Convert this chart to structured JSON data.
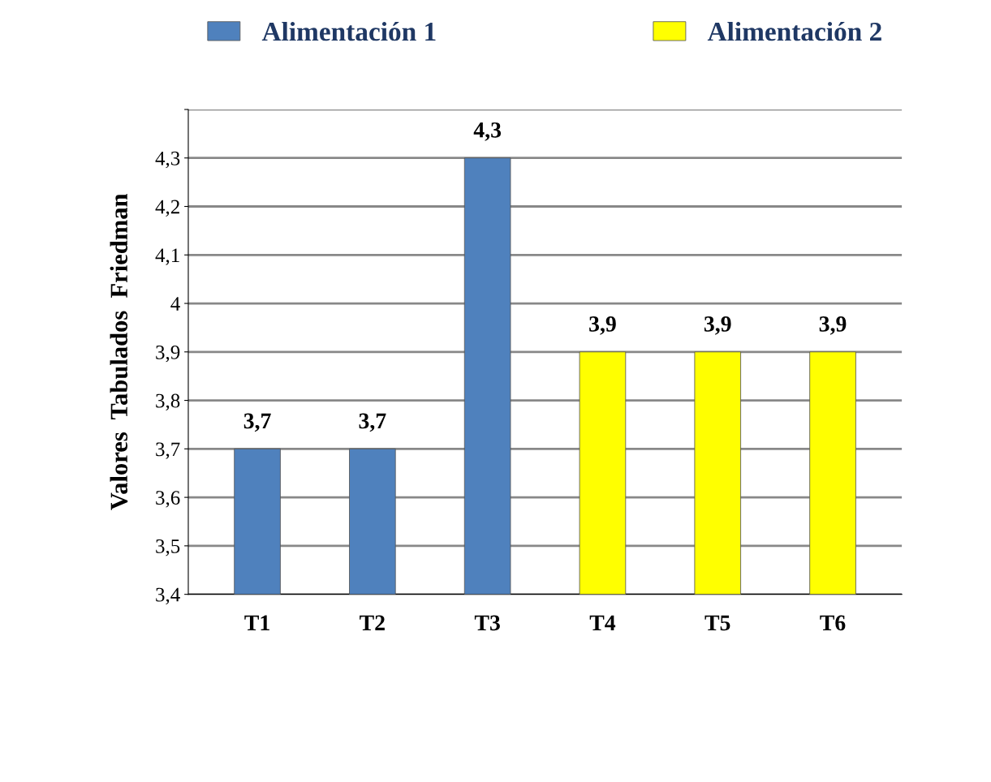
{
  "chart_data": {
    "type": "bar",
    "ylabel": "Valores  Tabulados  Friedman",
    "categories": [
      "T1",
      "T2",
      "T3",
      "T4",
      "T5",
      "T6"
    ],
    "series": [
      {
        "name": "Alimentación 1",
        "color": "#4f81bd",
        "values": [
          3.7,
          3.7,
          4.3,
          null,
          null,
          null
        ],
        "value_labels": [
          "3,7",
          "3,7",
          "4,3",
          null,
          null,
          null
        ]
      },
      {
        "name": "Alimentación 2",
        "color": "#ffff00",
        "values": [
          null,
          null,
          null,
          3.9,
          3.9,
          3.9
        ],
        "value_labels": [
          null,
          null,
          null,
          "3,9",
          "3,9",
          "3,9"
        ]
      }
    ],
    "ylim": [
      3.4,
      4.4
    ],
    "yticks": [
      {
        "value": 3.4,
        "label": "3,4"
      },
      {
        "value": 3.5,
        "label": "3,5"
      },
      {
        "value": 3.6,
        "label": "3,6"
      },
      {
        "value": 3.7,
        "label": "3,7"
      },
      {
        "value": 3.8,
        "label": "3,8"
      },
      {
        "value": 3.9,
        "label": "3,9"
      },
      {
        "value": 4,
        "label": "4"
      },
      {
        "value": 4.1,
        "label": "4,1"
      },
      {
        "value": 4.2,
        "label": "4,2"
      },
      {
        "value": 4.3,
        "label": "4,3"
      },
      {
        "value": 4.4,
        "label": null
      }
    ],
    "grid": "y",
    "legend": "top"
  }
}
